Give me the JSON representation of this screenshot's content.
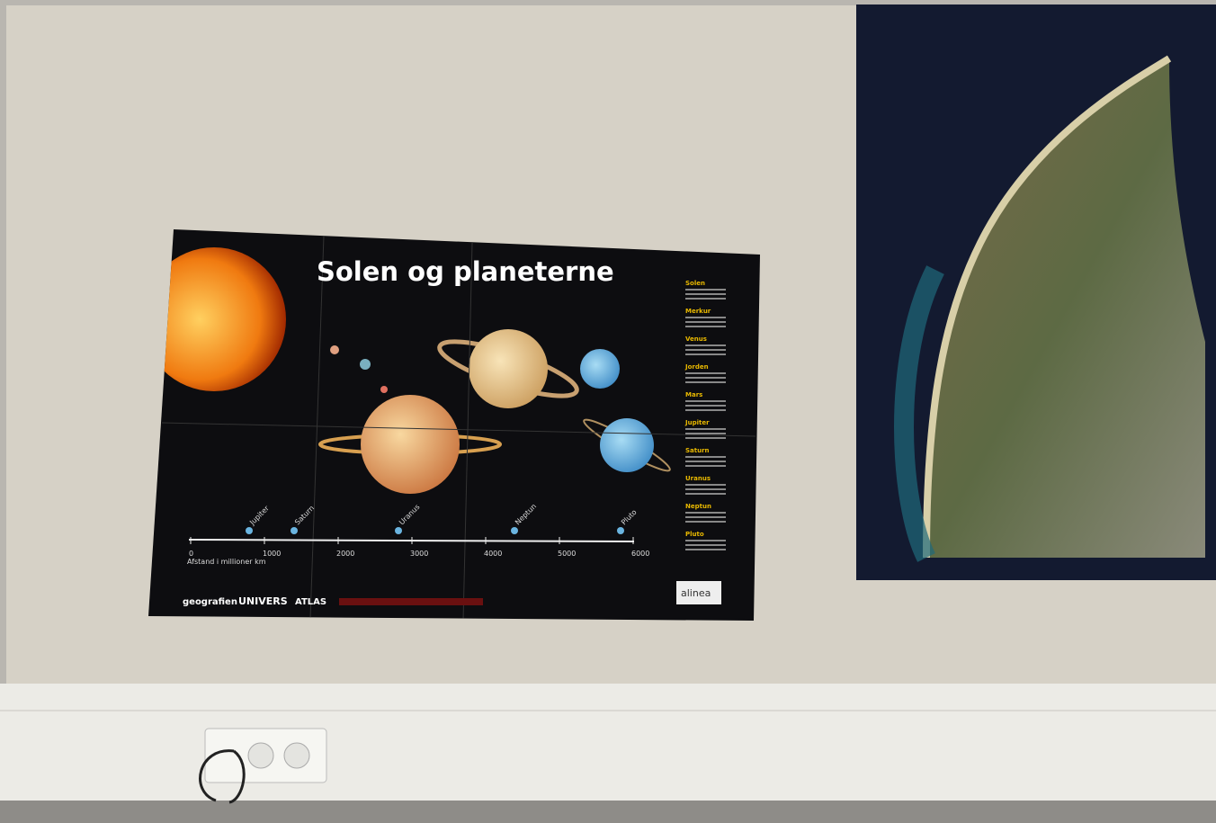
{
  "poster": {
    "title": "Solen og planeterne",
    "side_headings": [
      "Solen",
      "Merkur",
      "Venus",
      "Jorden",
      "Mars",
      "Jupiter",
      "Saturn",
      "Uranus",
      "Neptun",
      "Pluto"
    ],
    "planet_labels": [
      "Jupiter",
      "Saturn",
      "Uranus",
      "Neptun",
      "Pluto"
    ],
    "axis": {
      "ticks": [
        "0",
        "1000",
        "2000",
        "3000",
        "4000",
        "5000",
        "6000"
      ],
      "label": "Afstand i millioner km"
    },
    "logos": [
      "geografien",
      "UNIVERS",
      "ATLAS",
      "alinea"
    ]
  }
}
